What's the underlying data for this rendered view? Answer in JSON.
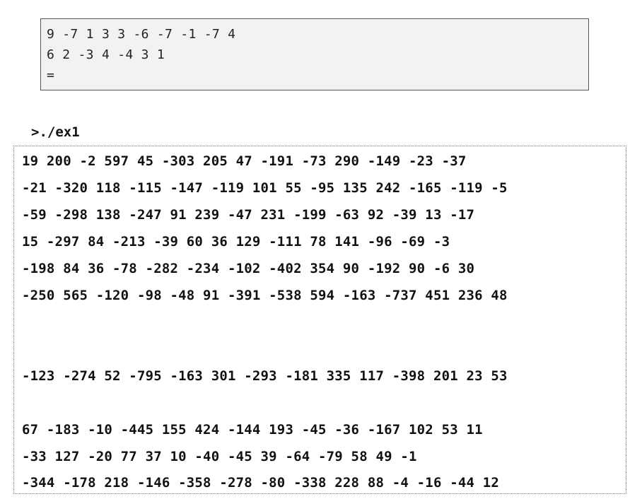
{
  "input": {
    "lines": [
      "9 -7 1 3 3 -6 -7 -1 -7 4",
      "6 2 -3 4 -4 3 1",
      "="
    ]
  },
  "command": ">./ex1",
  "output": {
    "lines": [
      "19 200 -2 597 45 -303 205 47 -191 -73 290 -149 -23 -37",
      "-21 -320 118 -115 -147 -119 101 55 -95 135 242 -165 -119 -5",
      "-59 -298 138 -247 91 239 -47 231 -199 -63 92 -39 13 -17",
      "15 -297 84 -213 -39 60 36 129 -111 78 141 -96 -69 -3",
      "-198 84 36 -78 -282 -234 -102 -402 354 90 -192 90 -6 30",
      "-250 565 -120 -98 -48 91 -391 -538 594 -163 -737 451 236 48",
      "-123 -274 52 -795 -163 301 -293 -181 335 117 -398 201 23 53",
      "67 -183 -10 -445 155 424 -144 193 -45 -36 -167 102 53 11",
      "-33 127 -20 77 37 10 -40 -45 39 -64 -79 58 49 -1",
      "-344 -178 218 -146 -358 -278 -80 -338 228 88 -4 -16 -44 12"
    ]
  }
}
